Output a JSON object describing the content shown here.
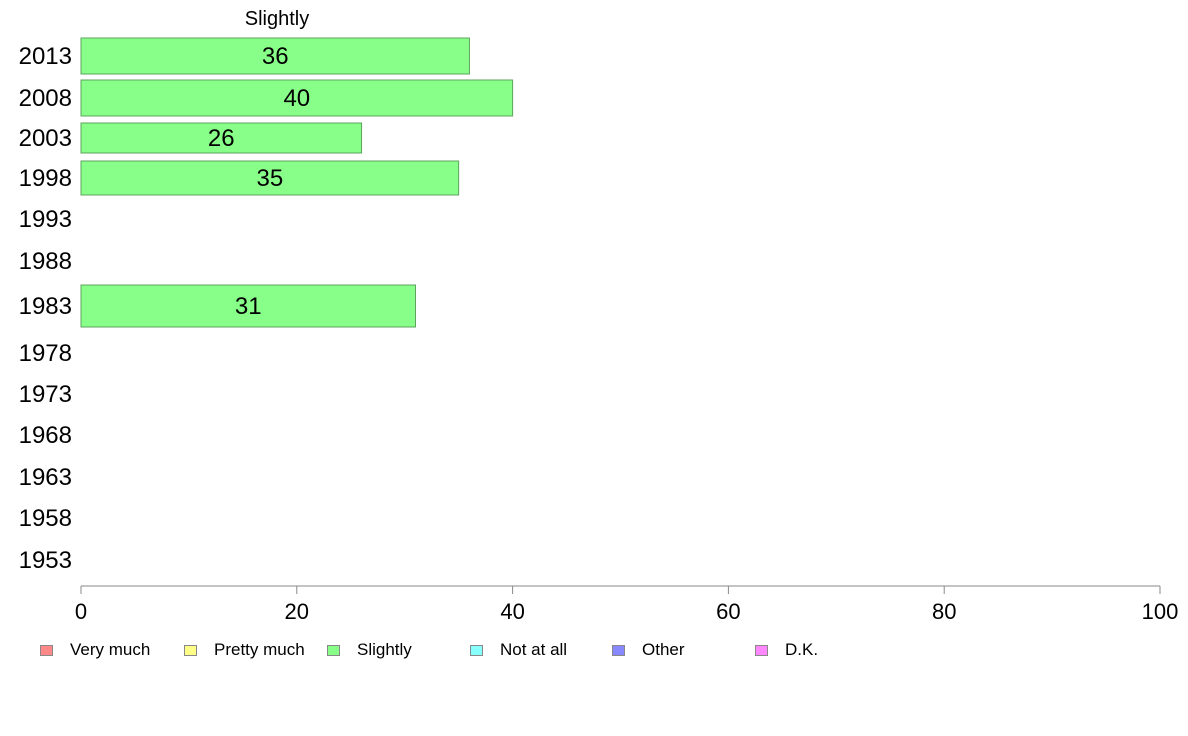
{
  "chart_data": {
    "type": "bar",
    "orientation": "horizontal",
    "title": "Slightly",
    "categories": [
      "2013",
      "2008",
      "2003",
      "1998",
      "1993",
      "1988",
      "1983",
      "1978",
      "1973",
      "1968",
      "1963",
      "1958",
      "1953"
    ],
    "series": [
      {
        "name": "Slightly",
        "values": [
          36,
          40,
          26,
          35,
          null,
          null,
          31,
          null,
          null,
          null,
          null,
          null,
          null
        ],
        "color": "#88ff88"
      }
    ],
    "xlim": [
      0,
      100
    ],
    "xticks": [
      0,
      20,
      40,
      60,
      80,
      100
    ],
    "grid": false,
    "legend_position": "bottom",
    "legend": [
      {
        "label": "Very much",
        "color": "#ff8888"
      },
      {
        "label": "Pretty much",
        "color": "#ffff88"
      },
      {
        "label": "Slightly",
        "color": "#88ff88"
      },
      {
        "label": "Not at all",
        "color": "#88ffff"
      },
      {
        "label": "Other",
        "color": "#8888ff"
      },
      {
        "label": "D.K.",
        "color": "#ff88ff"
      }
    ]
  }
}
